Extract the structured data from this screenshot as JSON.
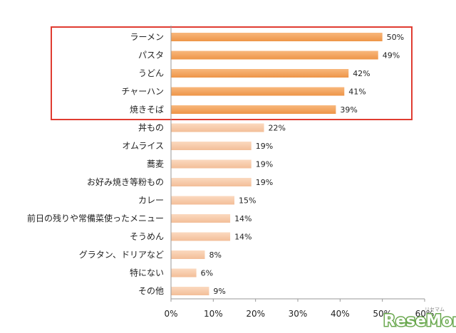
{
  "chart_data": {
    "type": "bar",
    "orientation": "horizontal",
    "categories": [
      "ラーメン",
      "パスタ",
      "うどん",
      "チャーハン",
      "焼きそば",
      "丼もの",
      "オムライス",
      "蕎麦",
      "お好み焼き等粉もの",
      "カレー",
      "前日の残りや常備菜使ったメニュー",
      "そうめん",
      "グラタン、ドリアなど",
      "特にない",
      "その他"
    ],
    "values": [
      50,
      49,
      42,
      41,
      39,
      22,
      19,
      19,
      19,
      15,
      14,
      14,
      8,
      6,
      9
    ],
    "value_labels": [
      "50%",
      "49%",
      "42%",
      "41%",
      "39%",
      "22%",
      "19%",
      "19%",
      "19%",
      "15%",
      "14%",
      "14%",
      "8%",
      "6%",
      "9%"
    ],
    "xlim": [
      0,
      60
    ],
    "xticks": [
      0,
      10,
      20,
      30,
      40,
      50,
      60
    ],
    "xtick_labels": [
      "0%",
      "10%",
      "20%",
      "30%",
      "40%",
      "50%",
      "60%"
    ],
    "highlight_count": 5,
    "colors": {
      "highlight_bar": "#F4A460",
      "highlight_bar_dark": "#E8893A",
      "normal_bar": "#F9CBA7",
      "normal_bar_dark": "#EFB48A",
      "highlight_box": "#E03C31",
      "axis": "#999999"
    },
    "grid": false
  },
  "watermark": {
    "text": "ReseMom",
    "subtext": "リセマム"
  }
}
